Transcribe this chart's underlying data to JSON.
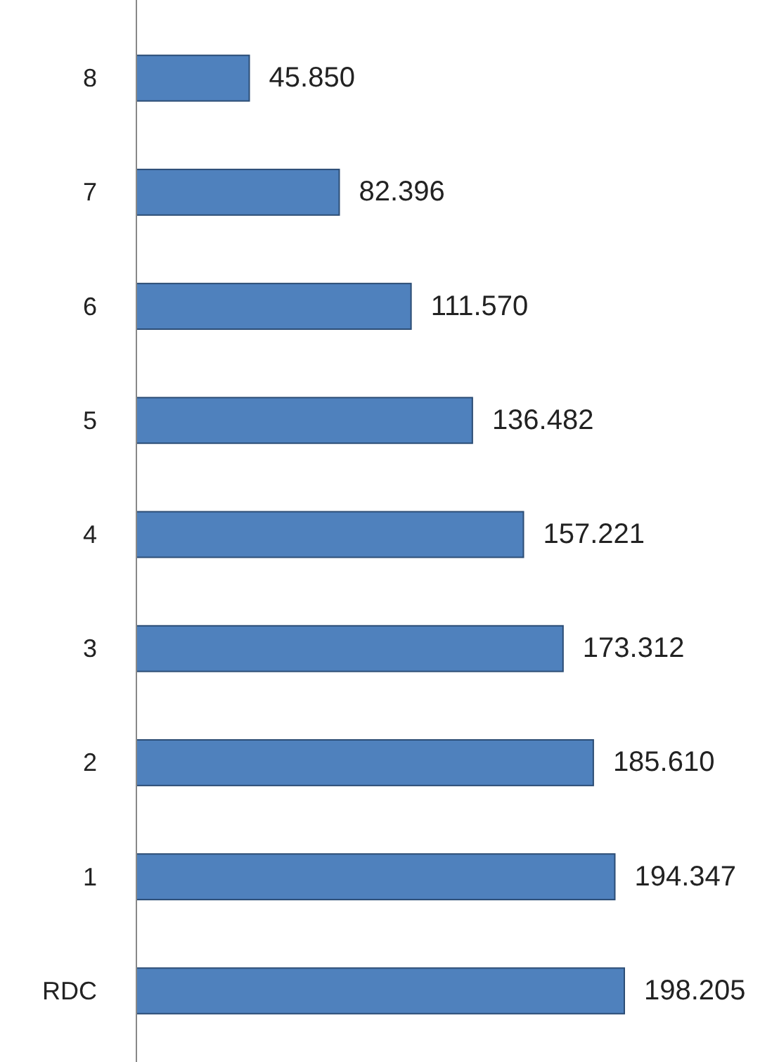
{
  "chart_data": {
    "type": "bar",
    "orientation": "horizontal",
    "categories": [
      "8",
      "7",
      "6",
      "5",
      "4",
      "3",
      "2",
      "1",
      "RDC"
    ],
    "values": [
      45.85,
      82.396,
      111.57,
      136.482,
      157.221,
      173.312,
      185.61,
      194.347,
      198.205
    ],
    "value_labels": [
      "45.850",
      "82.396",
      "111.570",
      "136.482",
      "157.221",
      "173.312",
      "185.610",
      "194.347",
      "198.205"
    ],
    "color": "#4f81bd",
    "tick_labels": "y"
  }
}
